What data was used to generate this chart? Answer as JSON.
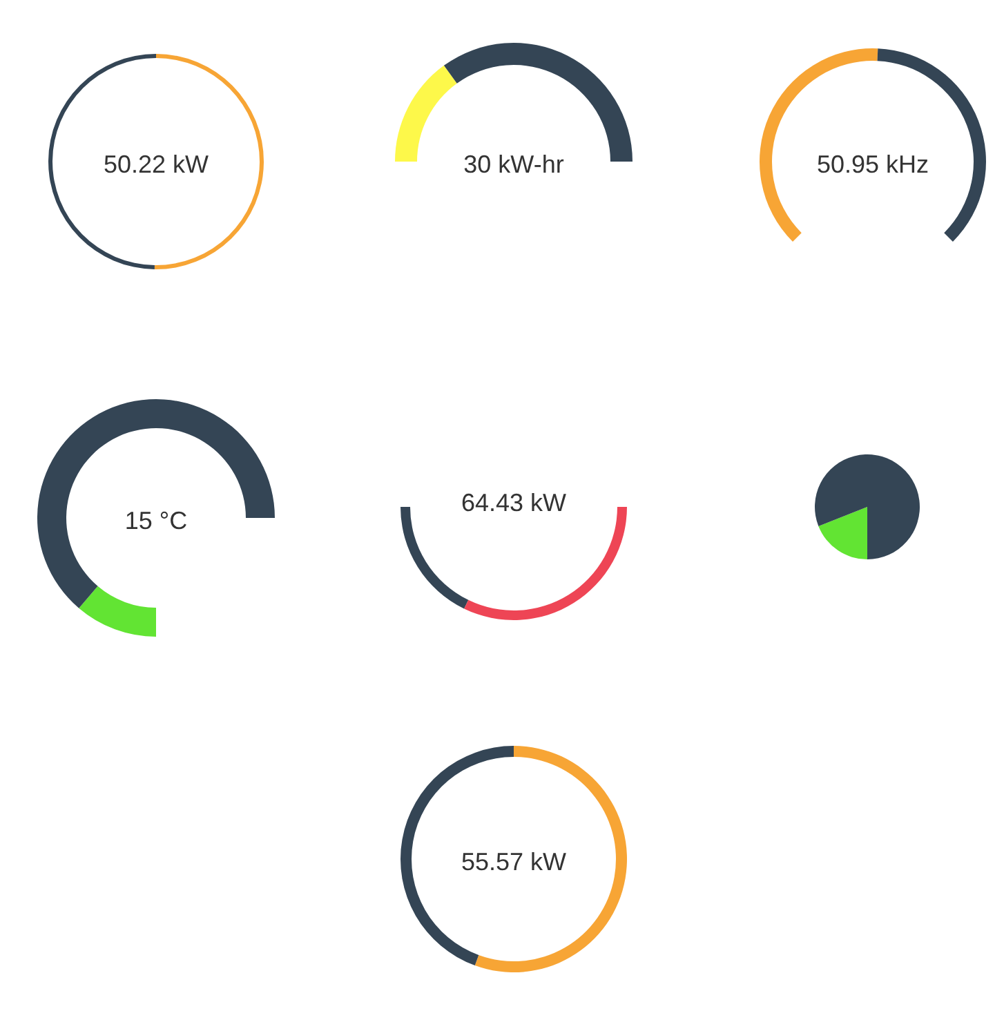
{
  "chart_data": [
    {
      "type": "donut",
      "title": "50.22 kW",
      "categories": [
        null,
        null
      ],
      "values": [
        50.22,
        49.78
      ],
      "colors": [
        "#f7a535",
        "#344555"
      ]
    },
    {
      "type": "donut",
      "title": "30 kW-hr",
      "categories": [
        null,
        null
      ],
      "values": [
        30,
        70
      ],
      "colors": [
        "#fdf84a",
        "#344555"
      ]
    },
    {
      "type": "donut",
      "title": "50.95 kHz",
      "categories": [
        null,
        null
      ],
      "values": [
        50.95,
        49.05
      ],
      "colors": [
        "#f7a535",
        "#344555"
      ]
    },
    {
      "type": "donut",
      "title": "15 °C",
      "categories": [
        null,
        null
      ],
      "values": [
        15,
        85
      ],
      "colors": [
        "#62e433",
        "#344555"
      ]
    },
    {
      "type": "donut",
      "title": "64.43 kW",
      "categories": [
        null,
        null
      ],
      "values": [
        35.57,
        64.43
      ],
      "colors": [
        "#344555",
        "#ee4555"
      ]
    },
    {
      "type": "pie",
      "categories": [
        null,
        null
      ],
      "values": [
        19,
        81
      ],
      "colors": [
        "#62e433",
        "#344555"
      ]
    },
    {
      "type": "donut",
      "title": "55.57 kW",
      "categories": [
        null,
        null
      ],
      "values": [
        55.57,
        44.43
      ],
      "colors": [
        "#f7a535",
        "#344555"
      ]
    }
  ]
}
